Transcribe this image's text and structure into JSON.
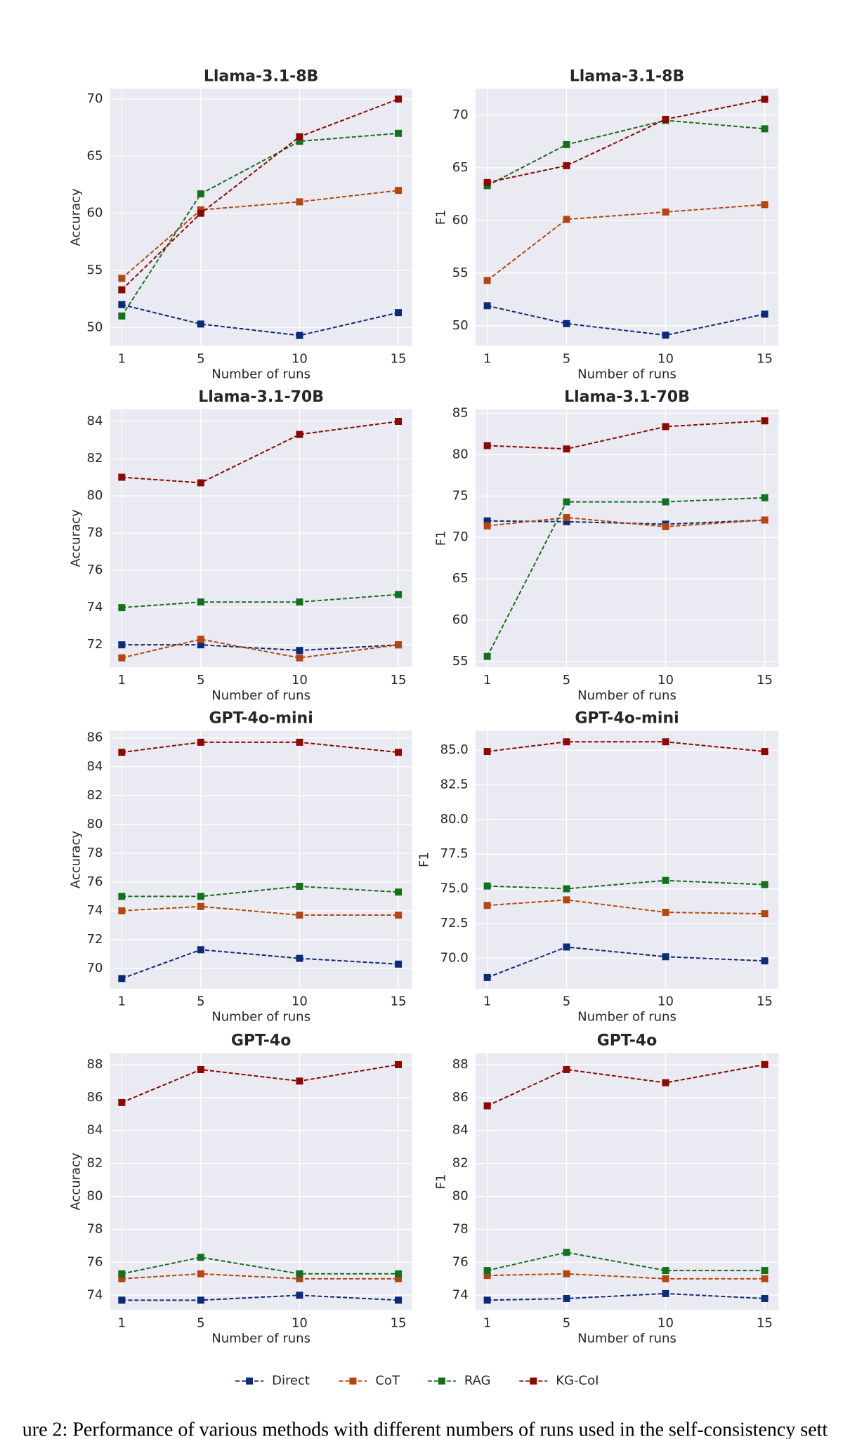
{
  "chart_data": [
    {
      "type": "line",
      "title": "Llama-3.1-8B",
      "xlabel": "Number of runs",
      "ylabel": "Accuracy",
      "x": [
        1,
        5,
        10,
        15
      ],
      "xlim": [
        0.4,
        15.7
      ],
      "xticks": [
        1,
        5,
        10,
        15
      ],
      "ylim": [
        48.4,
        70.9
      ],
      "yticks": [
        50,
        55,
        60,
        65,
        70
      ],
      "grid": true,
      "series": [
        {
          "name": "Direct",
          "color": "#0d2a7a",
          "values": [
            52.0,
            50.3,
            49.3,
            51.3
          ]
        },
        {
          "name": "CoT",
          "color": "#b5460f",
          "values": [
            54.3,
            60.3,
            61.0,
            62.0
          ]
        },
        {
          "name": "RAG",
          "color": "#13711c",
          "values": [
            51.0,
            61.7,
            66.3,
            67.0
          ]
        },
        {
          "name": "KG-CoI",
          "color": "#8c0800",
          "values": [
            53.3,
            60.0,
            66.7,
            70.0
          ]
        }
      ]
    },
    {
      "type": "line",
      "title": "Llama-3.1-8B",
      "xlabel": "Number of runs",
      "ylabel": "F1",
      "x": [
        1,
        5,
        10,
        15
      ],
      "xlim": [
        0.4,
        15.7
      ],
      "xticks": [
        1,
        5,
        10,
        15
      ],
      "ylim": [
        48.1,
        72.5
      ],
      "yticks": [
        50,
        55,
        60,
        65,
        70
      ],
      "grid": true,
      "series": [
        {
          "name": "Direct",
          "color": "#0d2a7a",
          "values": [
            51.9,
            50.2,
            49.1,
            51.1
          ]
        },
        {
          "name": "CoT",
          "color": "#b5460f",
          "values": [
            54.3,
            60.1,
            60.8,
            61.5
          ]
        },
        {
          "name": "RAG",
          "color": "#13711c",
          "values": [
            63.3,
            67.2,
            69.5,
            68.7
          ]
        },
        {
          "name": "KG-CoI",
          "color": "#8c0800",
          "values": [
            63.6,
            65.2,
            69.6,
            71.5
          ]
        }
      ]
    },
    {
      "type": "line",
      "title": "Llama-3.1-70B",
      "xlabel": "Number of runs",
      "ylabel": "Accuracy",
      "x": [
        1,
        5,
        10,
        15
      ],
      "xlim": [
        0.4,
        15.7
      ],
      "xticks": [
        1,
        5,
        10,
        15
      ],
      "ylim": [
        70.8,
        84.65
      ],
      "yticks": [
        72,
        74,
        76,
        78,
        80,
        82,
        84
      ],
      "grid": true,
      "series": [
        {
          "name": "Direct",
          "color": "#0d2a7a",
          "values": [
            72.0,
            72.0,
            71.7,
            72.0
          ]
        },
        {
          "name": "CoT",
          "color": "#b5460f",
          "values": [
            71.3,
            72.3,
            71.3,
            72.0
          ]
        },
        {
          "name": "RAG",
          "color": "#13711c",
          "values": [
            74.0,
            74.3,
            74.3,
            74.7
          ]
        },
        {
          "name": "KG-CoI",
          "color": "#8c0800",
          "values": [
            81.0,
            80.7,
            83.3,
            84.0
          ]
        }
      ]
    },
    {
      "type": "line",
      "title": "Llama-3.1-70B",
      "xlabel": "Number of runs",
      "ylabel": "F1",
      "x": [
        1,
        5,
        10,
        15
      ],
      "xlim": [
        0.4,
        15.7
      ],
      "xticks": [
        1,
        5,
        10,
        15
      ],
      "ylim": [
        54.3,
        85.5
      ],
      "yticks": [
        55,
        60,
        65,
        70,
        75,
        80,
        85
      ],
      "grid": true,
      "series": [
        {
          "name": "Direct",
          "color": "#0d2a7a",
          "values": [
            72.0,
            71.9,
            71.6,
            72.1
          ]
        },
        {
          "name": "CoT",
          "color": "#b5460f",
          "values": [
            71.4,
            72.4,
            71.3,
            72.1
          ]
        },
        {
          "name": "RAG",
          "color": "#13711c",
          "values": [
            55.6,
            74.3,
            74.3,
            74.8
          ]
        },
        {
          "name": "KG-CoI",
          "color": "#8c0800",
          "values": [
            81.1,
            80.7,
            83.4,
            84.1
          ]
        }
      ]
    },
    {
      "type": "line",
      "title": "GPT-4o-mini",
      "xlabel": "Number of runs",
      "ylabel": "Accuracy",
      "x": [
        1,
        5,
        10,
        15
      ],
      "xlim": [
        0.4,
        15.7
      ],
      "xticks": [
        1,
        5,
        10,
        15
      ],
      "ylim": [
        68.6,
        86.5
      ],
      "yticks": [
        70,
        72,
        74,
        76,
        78,
        80,
        82,
        84,
        86
      ],
      "grid": true,
      "series": [
        {
          "name": "Direct",
          "color": "#0d2a7a",
          "values": [
            69.3,
            71.3,
            70.7,
            70.3
          ]
        },
        {
          "name": "CoT",
          "color": "#b5460f",
          "values": [
            74.0,
            74.3,
            73.7,
            73.7
          ]
        },
        {
          "name": "RAG",
          "color": "#13711c",
          "values": [
            75.0,
            75.0,
            75.7,
            75.3
          ]
        },
        {
          "name": "KG-CoI",
          "color": "#8c0800",
          "values": [
            85.0,
            85.7,
            85.7,
            85.0
          ]
        }
      ]
    },
    {
      "type": "line",
      "title": "GPT-4o-mini",
      "xlabel": "Number of runs",
      "ylabel": "F1",
      "x": [
        1,
        5,
        10,
        15
      ],
      "xlim": [
        0.4,
        15.7
      ],
      "xticks": [
        1,
        5,
        10,
        15
      ],
      "ylim": [
        67.8,
        86.4
      ],
      "yticks": [
        {
          "value": 70,
          "label": "70.0"
        },
        {
          "value": 72.5,
          "label": "72.5"
        },
        {
          "value": 75,
          "label": "75.0"
        },
        {
          "value": 77.5,
          "label": "77.5"
        },
        {
          "value": 80,
          "label": "80.0"
        },
        {
          "value": 82.5,
          "label": "82.5"
        },
        {
          "value": 85,
          "label": "85.0"
        }
      ],
      "grid": true,
      "series": [
        {
          "name": "Direct",
          "color": "#0d2a7a",
          "values": [
            68.6,
            70.8,
            70.1,
            69.8
          ]
        },
        {
          "name": "CoT",
          "color": "#b5460f",
          "values": [
            73.8,
            74.2,
            73.3,
            73.2
          ]
        },
        {
          "name": "RAG",
          "color": "#13711c",
          "values": [
            75.2,
            75.0,
            75.6,
            75.3
          ]
        },
        {
          "name": "KG-CoI",
          "color": "#8c0800",
          "values": [
            84.9,
            85.6,
            85.6,
            84.9
          ]
        }
      ]
    },
    {
      "type": "line",
      "title": "GPT-4o",
      "xlabel": "Number of runs",
      "ylabel": "Accuracy",
      "x": [
        1,
        5,
        10,
        15
      ],
      "xlim": [
        0.4,
        15.7
      ],
      "xticks": [
        1,
        5,
        10,
        15
      ],
      "ylim": [
        73.1,
        88.7
      ],
      "yticks": [
        74,
        76,
        78,
        80,
        82,
        84,
        86,
        88
      ],
      "grid": true,
      "series": [
        {
          "name": "Direct",
          "color": "#0d2a7a",
          "values": [
            73.7,
            73.7,
            74.0,
            73.7
          ]
        },
        {
          "name": "CoT",
          "color": "#b5460f",
          "values": [
            75.0,
            75.3,
            75.0,
            75.0
          ]
        },
        {
          "name": "RAG",
          "color": "#13711c",
          "values": [
            75.3,
            76.3,
            75.3,
            75.3
          ]
        },
        {
          "name": "KG-CoI",
          "color": "#8c0800",
          "values": [
            85.7,
            87.7,
            87.0,
            88.0
          ]
        }
      ]
    },
    {
      "type": "line",
      "title": "GPT-4o",
      "xlabel": "Number of runs",
      "ylabel": "F1",
      "x": [
        1,
        5,
        10,
        15
      ],
      "xlim": [
        0.4,
        15.7
      ],
      "xticks": [
        1,
        5,
        10,
        15
      ],
      "ylim": [
        73.1,
        88.7
      ],
      "yticks": [
        74,
        76,
        78,
        80,
        82,
        84,
        86,
        88
      ],
      "grid": true,
      "series": [
        {
          "name": "Direct",
          "color": "#0d2a7a",
          "values": [
            73.7,
            73.8,
            74.1,
            73.8
          ]
        },
        {
          "name": "CoT",
          "color": "#b5460f",
          "values": [
            75.2,
            75.3,
            75.0,
            75.0
          ]
        },
        {
          "name": "RAG",
          "color": "#13711c",
          "values": [
            75.5,
            76.6,
            75.5,
            75.5
          ]
        },
        {
          "name": "KG-CoI",
          "color": "#8c0800",
          "values": [
            85.5,
            87.7,
            86.9,
            88.0
          ]
        }
      ]
    }
  ],
  "caption": "ure 2: Performance of various methods with different numbers of runs used in the self-consistency sett"
}
